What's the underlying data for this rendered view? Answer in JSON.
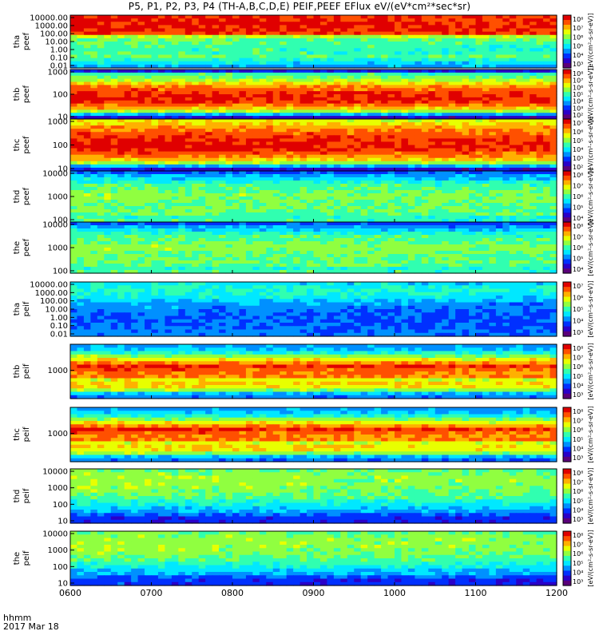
{
  "title": "P5, P1, P2, P3, P4 (TH-A,B,C,D,E) PEIF,PEEF EFlux eV/(eV*cm²*sec*sr)",
  "footer": {
    "time_label": "hhmm",
    "date_label": "2017 Mar 18"
  },
  "x_axis": {
    "ticks": [
      "0600",
      "0700",
      "0800",
      "0900",
      "1000",
      "1100",
      "1200"
    ],
    "range_hhmm": [
      "0600",
      "1200"
    ]
  },
  "colormap": [
    "#5a007a",
    "#2a00c8",
    "#0030ff",
    "#0090ff",
    "#00e8ff",
    "#30ffb0",
    "#90ff40",
    "#e8ff00",
    "#ffb000",
    "#ff5000",
    "#e00000"
  ],
  "chart_data": [
    {
      "type": "heatmap",
      "label": "tha\npeef",
      "y_ticks": [
        "10000.00",
        "1000.00",
        "100.00",
        "10.00",
        "1.00",
        "0.10",
        "0.01"
      ],
      "cbar_ticks": [
        "10⁸",
        "10⁷",
        "10⁶",
        "10⁵",
        "10⁴",
        "10³"
      ],
      "cbar_label": "[eV/(cm²-s-sr-eV)]",
      "profile": [
        [
          0.0,
          0.3
        ],
        [
          0.08,
          0.4
        ],
        [
          0.16,
          0.5
        ],
        [
          0.22,
          0.55
        ],
        [
          0.3,
          0.5
        ],
        [
          0.42,
          0.52
        ],
        [
          0.52,
          0.55
        ],
        [
          0.62,
          0.7
        ],
        [
          0.66,
          0.98
        ],
        [
          0.78,
          0.99
        ],
        [
          1.0,
          0.98
        ]
      ]
    },
    {
      "type": "heatmap",
      "label": "thb\npeef",
      "y_ticks": [
        "1000",
        "100",
        "10"
      ],
      "cbar_ticks": [
        "10⁸",
        "10⁷",
        "10⁶",
        "10⁵",
        "10⁴",
        "10³",
        "10²"
      ],
      "cbar_label": "[eV/(cm²-s-sr-eV)]",
      "profile": [
        [
          0.0,
          0.15
        ],
        [
          0.06,
          0.1
        ],
        [
          0.12,
          0.55
        ],
        [
          0.22,
          0.8
        ],
        [
          0.32,
          0.95
        ],
        [
          0.45,
          1.0
        ],
        [
          0.55,
          0.95
        ],
        [
          0.68,
          0.82
        ],
        [
          0.8,
          0.62
        ],
        [
          0.9,
          0.55
        ],
        [
          0.96,
          0.2
        ],
        [
          1.0,
          0.1
        ]
      ]
    },
    {
      "type": "heatmap",
      "label": "thc\npeef",
      "y_ticks": [
        "1000",
        "100",
        "10"
      ],
      "cbar_ticks": [
        "10⁷",
        "10⁶",
        "10⁵",
        "10⁴",
        "10³",
        "10²"
      ],
      "cbar_label": "[eV/(cm²-s-sr-eV)]",
      "profile": [
        [
          0.0,
          0.15
        ],
        [
          0.06,
          0.1
        ],
        [
          0.12,
          0.55
        ],
        [
          0.22,
          0.78
        ],
        [
          0.32,
          0.9
        ],
        [
          0.45,
          1.0
        ],
        [
          0.58,
          0.98
        ],
        [
          0.7,
          0.92
        ],
        [
          0.82,
          0.85
        ],
        [
          0.92,
          0.75
        ],
        [
          1.0,
          0.7
        ]
      ]
    },
    {
      "type": "heatmap",
      "label": "thd\npeef",
      "y_ticks": [
        "10000",
        "1000",
        "100"
      ],
      "cbar_ticks": [
        "10⁸",
        "10⁷",
        "10⁶",
        "10⁵",
        "10⁴"
      ],
      "cbar_label": "[eV/(cm²-s-sr-eV)]",
      "profile": [
        [
          0.0,
          0.52
        ],
        [
          0.1,
          0.5
        ],
        [
          0.2,
          0.58
        ],
        [
          0.35,
          0.56
        ],
        [
          0.5,
          0.62
        ],
        [
          0.62,
          0.56
        ],
        [
          0.75,
          0.52
        ],
        [
          0.85,
          0.4
        ],
        [
          0.93,
          0.32
        ],
        [
          1.0,
          0.2
        ]
      ]
    },
    {
      "type": "heatmap",
      "label": "the\npeef",
      "y_ticks": [
        "10000",
        "1000",
        "100"
      ],
      "cbar_ticks": [
        "10⁸",
        "10⁷",
        "10⁶",
        "10⁵",
        "10⁴"
      ],
      "cbar_label": "[eV/(cm²-s-sr-eV)]",
      "profile": [
        [
          0.0,
          0.52
        ],
        [
          0.1,
          0.5
        ],
        [
          0.2,
          0.58
        ],
        [
          0.35,
          0.56
        ],
        [
          0.5,
          0.62
        ],
        [
          0.62,
          0.56
        ],
        [
          0.75,
          0.52
        ],
        [
          0.85,
          0.4
        ],
        [
          0.93,
          0.3
        ],
        [
          1.0,
          0.18
        ]
      ]
    },
    {
      "type": "heatmap",
      "label": "tha\npeif",
      "y_ticks": [
        "10000.00",
        "1000.00",
        "100.00",
        "10.00",
        "1.00",
        "0.10",
        "0.01"
      ],
      "cbar_ticks": [
        "10⁷",
        "10⁶",
        "10⁵",
        "10⁴",
        "10³"
      ],
      "cbar_label": "[eV/(cm²-s-sr-eV)]",
      "profile": [
        [
          0.0,
          0.3
        ],
        [
          0.1,
          0.28
        ],
        [
          0.25,
          0.25
        ],
        [
          0.4,
          0.25
        ],
        [
          0.5,
          0.3
        ],
        [
          0.6,
          0.32
        ],
        [
          0.67,
          0.38
        ],
        [
          0.74,
          0.45
        ],
        [
          0.84,
          0.48
        ],
        [
          0.92,
          0.45
        ],
        [
          1.0,
          0.4
        ]
      ]
    },
    {
      "type": "heatmap",
      "label": "thb\npeif",
      "y_ticks": [
        "1000"
      ],
      "cbar_ticks": [
        "10⁸",
        "10⁷",
        "10⁶",
        "10⁵",
        "10⁴",
        "10³"
      ],
      "cbar_label": "[eV/(cm²-s-sr-eV)]",
      "profile": [
        [
          0.0,
          0.28
        ],
        [
          0.08,
          0.32
        ],
        [
          0.15,
          0.6
        ],
        [
          0.25,
          0.8
        ],
        [
          0.35,
          0.7
        ],
        [
          0.42,
          0.92
        ],
        [
          0.5,
          0.85
        ],
        [
          0.58,
          1.0
        ],
        [
          0.68,
          0.8
        ],
        [
          0.78,
          0.6
        ],
        [
          0.88,
          0.4
        ],
        [
          1.0,
          0.3
        ]
      ]
    },
    {
      "type": "heatmap",
      "label": "thc\npeif",
      "y_ticks": [
        "1000"
      ],
      "cbar_ticks": [
        "10⁸",
        "10⁷",
        "10⁶",
        "10⁵",
        "10⁴",
        "10³"
      ],
      "cbar_label": "[eV/(cm²-s-sr-eV)]",
      "profile": [
        [
          0.0,
          0.28
        ],
        [
          0.08,
          0.32
        ],
        [
          0.15,
          0.6
        ],
        [
          0.25,
          0.8
        ],
        [
          0.35,
          0.7
        ],
        [
          0.42,
          0.92
        ],
        [
          0.5,
          0.85
        ],
        [
          0.58,
          1.0
        ],
        [
          0.68,
          0.8
        ],
        [
          0.78,
          0.6
        ],
        [
          0.88,
          0.4
        ],
        [
          1.0,
          0.3
        ]
      ]
    },
    {
      "type": "heatmap",
      "label": "thd\npeif",
      "y_ticks": [
        "10000",
        "1000",
        "100",
        "10"
      ],
      "cbar_ticks": [
        "10⁸",
        "10⁷",
        "10⁶",
        "10⁵",
        "10⁴",
        "10³"
      ],
      "cbar_label": "[eV/(cm²-s-sr-eV)]",
      "profile": [
        [
          0.0,
          0.2
        ],
        [
          0.12,
          0.2
        ],
        [
          0.22,
          0.35
        ],
        [
          0.32,
          0.42
        ],
        [
          0.45,
          0.52
        ],
        [
          0.6,
          0.6
        ],
        [
          0.75,
          0.62
        ],
        [
          0.88,
          0.62
        ],
        [
          1.0,
          0.55
        ]
      ]
    },
    {
      "type": "heatmap",
      "label": "the\npeif",
      "y_ticks": [
        "10000",
        "1000",
        "100",
        "10"
      ],
      "cbar_ticks": [
        "10⁸",
        "10⁷",
        "10⁶",
        "10⁵",
        "10⁴",
        "10³"
      ],
      "cbar_label": "[eV/(cm²-s-sr-eV)]",
      "profile": [
        [
          0.0,
          0.2
        ],
        [
          0.12,
          0.2
        ],
        [
          0.22,
          0.35
        ],
        [
          0.32,
          0.42
        ],
        [
          0.45,
          0.52
        ],
        [
          0.6,
          0.6
        ],
        [
          0.75,
          0.62
        ],
        [
          0.88,
          0.62
        ],
        [
          1.0,
          0.55
        ]
      ]
    }
  ]
}
